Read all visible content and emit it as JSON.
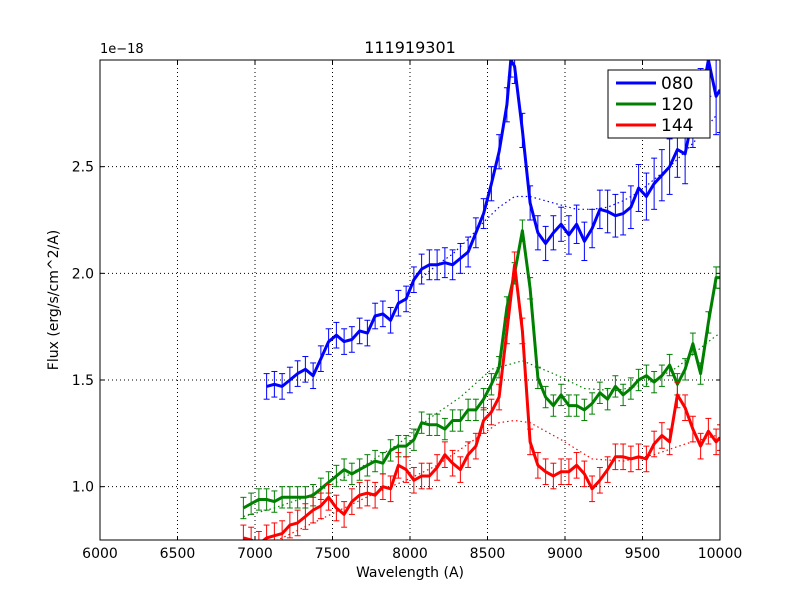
{
  "chart_data": {
    "type": "line",
    "title": "111919301",
    "xlabel": "Wavelength (A)",
    "ylabel": "Flux (erg/s/cm^2/A)",
    "y_offset_label": "1e−18",
    "xlim": [
      6000,
      10000
    ],
    "ylim": [
      0.75,
      3.0
    ],
    "xticks": [
      6000,
      6500,
      7000,
      7500,
      8000,
      8500,
      9000,
      9500,
      10000
    ],
    "xtick_labels": [
      "6000",
      "6500",
      "7000",
      "7500",
      "8000",
      "8500",
      "9000",
      "9500",
      "10000"
    ],
    "yticks": [
      1.0,
      1.5,
      2.0,
      2.5
    ],
    "ytick_labels": [
      "1.0",
      "1.5",
      "2.0",
      "2.5"
    ],
    "grid": true,
    "legend_position": "top-right",
    "series": [
      {
        "name": "080",
        "color": "#0000ff",
        "x": [
          7075,
          7125,
          7175,
          7225,
          7275,
          7325,
          7375,
          7425,
          7475,
          7525,
          7575,
          7625,
          7675,
          7725,
          7775,
          7825,
          7875,
          7925,
          7975,
          8025,
          8075,
          8125,
          8175,
          8225,
          8275,
          8325,
          8375,
          8425,
          8475,
          8525,
          8575,
          8625,
          8650,
          8675,
          8725,
          8775,
          8825,
          8875,
          8925,
          8975,
          9025,
          9075,
          9125,
          9175,
          9225,
          9275,
          9325,
          9375,
          9425,
          9475,
          9525,
          9575,
          9625,
          9675,
          9725,
          9775,
          9825,
          9875,
          9925,
          9975,
          10000
        ],
        "y": [
          1.47,
          1.48,
          1.47,
          1.5,
          1.53,
          1.55,
          1.52,
          1.6,
          1.68,
          1.71,
          1.68,
          1.69,
          1.73,
          1.72,
          1.8,
          1.81,
          1.78,
          1.86,
          1.88,
          1.97,
          2.02,
          2.04,
          2.04,
          2.05,
          2.04,
          2.07,
          2.1,
          2.19,
          2.28,
          2.42,
          2.57,
          2.79,
          3.0,
          2.97,
          2.67,
          2.33,
          2.19,
          2.14,
          2.19,
          2.23,
          2.18,
          2.23,
          2.15,
          2.21,
          2.3,
          2.29,
          2.27,
          2.28,
          2.31,
          2.4,
          2.36,
          2.42,
          2.46,
          2.5,
          2.58,
          2.56,
          2.74,
          2.8,
          3.0,
          2.83,
          2.86
        ],
        "error": [
          0.06,
          0.06,
          0.06,
          0.06,
          0.06,
          0.06,
          0.06,
          0.06,
          0.06,
          0.06,
          0.06,
          0.06,
          0.06,
          0.06,
          0.06,
          0.06,
          0.06,
          0.06,
          0.06,
          0.06,
          0.07,
          0.07,
          0.07,
          0.07,
          0.07,
          0.07,
          0.07,
          0.07,
          0.07,
          0.08,
          0.08,
          0.08,
          0.08,
          0.08,
          0.08,
          0.08,
          0.08,
          0.08,
          0.08,
          0.08,
          0.09,
          0.09,
          0.09,
          0.09,
          0.09,
          0.1,
          0.1,
          0.1,
          0.1,
          0.11,
          0.11,
          0.12,
          0.12,
          0.13,
          0.13,
          0.14,
          0.15,
          0.16,
          0.17,
          0.18,
          0.2
        ]
      },
      {
        "name": "120",
        "color": "#008000",
        "x": [
          6925,
          6975,
          7025,
          7075,
          7125,
          7175,
          7225,
          7275,
          7325,
          7375,
          7425,
          7475,
          7525,
          7575,
          7625,
          7675,
          7725,
          7775,
          7825,
          7875,
          7925,
          7975,
          8025,
          8075,
          8125,
          8175,
          8225,
          8275,
          8325,
          8375,
          8425,
          8475,
          8525,
          8575,
          8625,
          8675,
          8725,
          8775,
          8825,
          8875,
          8925,
          8975,
          9025,
          9075,
          9125,
          9175,
          9225,
          9275,
          9325,
          9375,
          9425,
          9475,
          9525,
          9575,
          9625,
          9675,
          9725,
          9775,
          9825,
          9875,
          9925,
          9975,
          10000
        ],
        "y": [
          0.9,
          0.92,
          0.94,
          0.94,
          0.93,
          0.95,
          0.95,
          0.95,
          0.95,
          0.96,
          0.99,
          1.02,
          1.05,
          1.08,
          1.06,
          1.08,
          1.1,
          1.12,
          1.11,
          1.17,
          1.19,
          1.19,
          1.22,
          1.3,
          1.29,
          1.29,
          1.27,
          1.31,
          1.31,
          1.36,
          1.36,
          1.41,
          1.48,
          1.56,
          1.84,
          2.0,
          2.2,
          1.93,
          1.51,
          1.42,
          1.38,
          1.43,
          1.38,
          1.38,
          1.36,
          1.39,
          1.44,
          1.41,
          1.47,
          1.43,
          1.46,
          1.5,
          1.52,
          1.49,
          1.52,
          1.57,
          1.48,
          1.55,
          1.67,
          1.53,
          1.77,
          1.98,
          1.98
        ]
      },
      {
        "name": "144",
        "color": "#ff0000",
        "x": [
          6925,
          6975,
          7025,
          7075,
          7125,
          7175,
          7225,
          7275,
          7325,
          7375,
          7425,
          7475,
          7525,
          7575,
          7625,
          7675,
          7725,
          7775,
          7825,
          7875,
          7925,
          7975,
          8025,
          8075,
          8125,
          8175,
          8225,
          8275,
          8325,
          8375,
          8425,
          8475,
          8525,
          8575,
          8625,
          8675,
          8725,
          8775,
          8825,
          8875,
          8925,
          8975,
          9025,
          9075,
          9125,
          9175,
          9225,
          9275,
          9325,
          9375,
          9425,
          9475,
          9525,
          9575,
          9625,
          9675,
          9725,
          9775,
          9825,
          9875,
          9925,
          9975,
          10000
        ],
        "y": [
          0.76,
          0.75,
          0.73,
          0.76,
          0.77,
          0.78,
          0.82,
          0.83,
          0.86,
          0.89,
          0.91,
          0.95,
          0.9,
          0.87,
          0.93,
          0.96,
          0.97,
          0.96,
          1.0,
          0.99,
          1.1,
          1.08,
          1.03,
          1.05,
          1.05,
          1.09,
          1.15,
          1.11,
          1.08,
          1.15,
          1.19,
          1.31,
          1.35,
          1.42,
          1.73,
          2.04,
          1.73,
          1.21,
          1.1,
          1.07,
          1.05,
          1.07,
          1.07,
          1.1,
          1.06,
          0.99,
          1.03,
          1.08,
          1.14,
          1.14,
          1.13,
          1.14,
          1.13,
          1.2,
          1.24,
          1.21,
          1.43,
          1.37,
          1.27,
          1.19,
          1.26,
          1.21,
          1.23
        ]
      }
    ],
    "continuum": [
      {
        "name": "080",
        "color": "#0000ff",
        "x": [
          8075,
          8175,
          8275,
          8375,
          8475,
          8575,
          8675,
          8775,
          8875,
          8975,
          9075,
          9175,
          9275,
          9375,
          9475,
          9575,
          9675,
          9775,
          9875,
          9975
        ],
        "y": [
          1.98,
          2.04,
          2.09,
          2.16,
          2.24,
          2.31,
          2.36,
          2.36,
          2.34,
          2.32,
          2.3,
          2.3,
          2.31,
          2.34,
          2.38,
          2.44,
          2.5,
          2.57,
          2.65,
          2.74
        ]
      },
      {
        "name": "120",
        "color": "#008000",
        "x": [
          6925,
          7125,
          7325,
          7525,
          7725,
          7925,
          8125,
          8325,
          8525,
          8725,
          8925,
          9125,
          9325,
          9525,
          9725,
          9925,
          10000
        ],
        "y": [
          0.86,
          0.9,
          0.95,
          1.02,
          1.11,
          1.2,
          1.32,
          1.42,
          1.55,
          1.59,
          1.53,
          1.46,
          1.45,
          1.48,
          1.56,
          1.68,
          1.72
        ]
      },
      {
        "name": "144",
        "color": "#ff0000",
        "x": [
          6975,
          7175,
          7375,
          7575,
          7775,
          7975,
          8175,
          8375,
          8575,
          8675,
          8775,
          8975,
          9175,
          9375,
          9575,
          9775,
          9975
        ],
        "y": [
          0.7,
          0.76,
          0.83,
          0.9,
          0.97,
          1.03,
          1.1,
          1.2,
          1.3,
          1.31,
          1.3,
          1.22,
          1.13,
          1.12,
          1.15,
          1.2,
          1.24
        ]
      }
    ]
  }
}
